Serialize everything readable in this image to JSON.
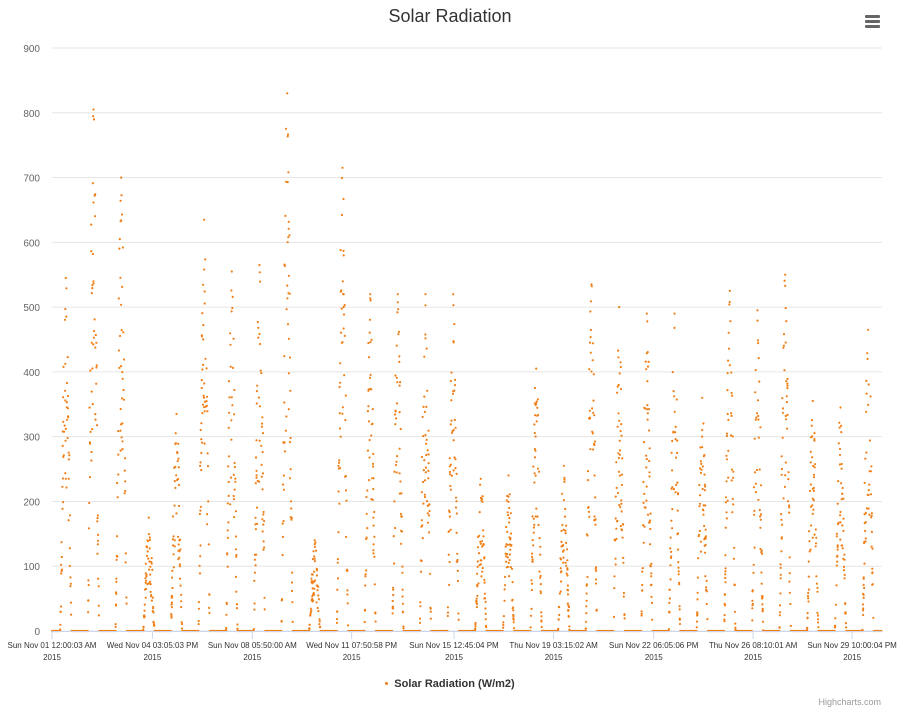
{
  "chart_data": {
    "type": "scatter",
    "title": "Solar Radiation",
    "xlabel": "",
    "ylabel": "",
    "ylim": [
      0,
      900
    ],
    "yticks": [
      0,
      100,
      200,
      300,
      400,
      500,
      600,
      700,
      800,
      900
    ],
    "xrange": [
      "2015-11-01",
      "2015-12-01"
    ],
    "xtick_labels": [
      {
        "line1": "Sun Nov 01 12:00:03 AM",
        "line2": "2015",
        "day": 0.0
      },
      {
        "line1": "Wed Nov 04 03:05:03 PM",
        "line2": "2015",
        "day": 3.63
      },
      {
        "line1": "Sun Nov 08 05:50:00 AM",
        "line2": "2015",
        "day": 7.24
      },
      {
        "line1": "Wed Nov 11 07:50:58 PM",
        "line2": "2015",
        "day": 10.83
      },
      {
        "line1": "Sun Nov 15 12:45:04 PM",
        "line2": "2015",
        "day": 14.53
      },
      {
        "line1": "Thu Nov 19 03:15:02 AM",
        "line2": "2015",
        "day": 18.13
      },
      {
        "line1": "Sun Nov 22 06:05:06 PM",
        "line2": "2015",
        "day": 21.75
      },
      {
        "line1": "Thu Nov 26 08:10:01 AM",
        "line2": "2015",
        "day": 25.34
      },
      {
        "line1": "Sun Nov 29 10:00:04 PM",
        "line2": "2015",
        "day": 28.92
      }
    ],
    "grid": true,
    "legend_position": "bottom-center",
    "series": [
      {
        "name": "Solar Radiation (W/m2)",
        "color": "#f07f18",
        "daily_peaks": [
          {
            "day": 0,
            "peak": 545
          },
          {
            "day": 1,
            "peak": 805
          },
          {
            "day": 2,
            "peak": 700
          },
          {
            "day": 3,
            "peak": 175
          },
          {
            "day": 4,
            "peak": 335
          },
          {
            "day": 5,
            "peak": 635
          },
          {
            "day": 6,
            "peak": 555
          },
          {
            "day": 7,
            "peak": 565
          },
          {
            "day": 8,
            "peak": 830
          },
          {
            "day": 9,
            "peak": 140
          },
          {
            "day": 10,
            "peak": 715
          },
          {
            "day": 11,
            "peak": 520
          },
          {
            "day": 12,
            "peak": 520
          },
          {
            "day": 13,
            "peak": 520
          },
          {
            "day": 14,
            "peak": 520
          },
          {
            "day": 15,
            "peak": 235
          },
          {
            "day": 16,
            "peak": 240
          },
          {
            "day": 17,
            "peak": 405
          },
          {
            "day": 18,
            "peak": 255
          },
          {
            "day": 19,
            "peak": 535
          },
          {
            "day": 20,
            "peak": 500
          },
          {
            "day": 21,
            "peak": 490
          },
          {
            "day": 22,
            "peak": 490
          },
          {
            "day": 23,
            "peak": 360
          },
          {
            "day": 24,
            "peak": 525
          },
          {
            "day": 25,
            "peak": 495
          },
          {
            "day": 26,
            "peak": 550
          },
          {
            "day": 27,
            "peak": 355
          },
          {
            "day": 28,
            "peak": 345
          },
          {
            "day": 29,
            "peak": 465
          }
        ]
      }
    ]
  },
  "menu": {
    "icon": "hamburger-menu-icon"
  },
  "credits": {
    "text": "Highcharts.com"
  }
}
